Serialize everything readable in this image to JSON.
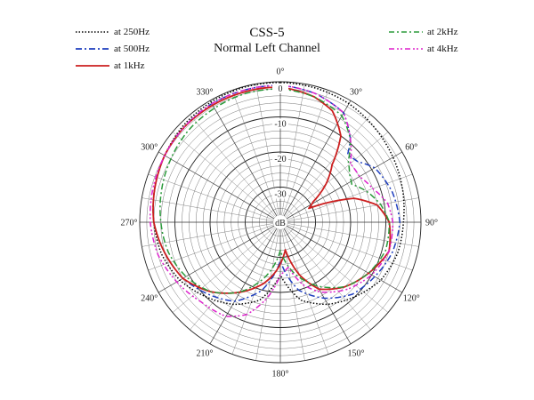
{
  "chart_data": {
    "type": "polar-line",
    "title": "CSS-5",
    "subtitle": "Normal Left Channel",
    "radial_axis": {
      "unit": "dB",
      "min": -40,
      "max": 0,
      "tick_labels": [
        "0",
        "-10",
        "-20",
        "-30"
      ],
      "tick_values": [
        0,
        -10,
        -20,
        -30
      ]
    },
    "angular_axis": {
      "tick_labels": [
        "0°",
        "30°",
        "60°",
        "90°",
        "120°",
        "150°",
        "180°",
        "210°",
        "240°",
        "270°",
        "300°",
        "330°"
      ],
      "tick_values": [
        0,
        30,
        60,
        90,
        120,
        150,
        180,
        210,
        240,
        270,
        300,
        330
      ],
      "direction": "clockwise",
      "zero_at": "top"
    },
    "grid": true,
    "legend": {
      "position": "top-left and top-right"
    },
    "series": [
      {
        "name": "at 250Hz",
        "color": "#000000",
        "style": "dotted",
        "points": [
          [
            0,
            -0.2
          ],
          [
            15,
            -0.5
          ],
          [
            30,
            -1
          ],
          [
            45,
            -2
          ],
          [
            60,
            -3
          ],
          [
            75,
            -4
          ],
          [
            90,
            -5
          ],
          [
            105,
            -5.5
          ],
          [
            120,
            -7
          ],
          [
            135,
            -10
          ],
          [
            150,
            -13
          ],
          [
            165,
            -17
          ],
          [
            180,
            -25
          ],
          [
            195,
            -17
          ],
          [
            210,
            -13
          ],
          [
            225,
            -10
          ],
          [
            240,
            -7
          ],
          [
            255,
            -5
          ],
          [
            270,
            -4
          ],
          [
            285,
            -3
          ],
          [
            300,
            -2
          ],
          [
            315,
            -1
          ],
          [
            330,
            -0.5
          ],
          [
            345,
            -0.2
          ]
        ]
      },
      {
        "name": "at 500Hz",
        "color": "#1f3fbf",
        "style": "dash-dot",
        "points": [
          [
            0,
            -1
          ],
          [
            15,
            -2
          ],
          [
            30,
            -4
          ],
          [
            40,
            -9
          ],
          [
            45,
            -13
          ],
          [
            52,
            -12
          ],
          [
            60,
            -9
          ],
          [
            75,
            -7
          ],
          [
            90,
            -6
          ],
          [
            105,
            -7
          ],
          [
            120,
            -9
          ],
          [
            135,
            -11
          ],
          [
            150,
            -15
          ],
          [
            165,
            -20
          ],
          [
            180,
            -29
          ],
          [
            195,
            -20
          ],
          [
            210,
            -14
          ],
          [
            225,
            -11
          ],
          [
            240,
            -8
          ],
          [
            255,
            -6
          ],
          [
            270,
            -4
          ],
          [
            285,
            -3
          ],
          [
            300,
            -2
          ],
          [
            315,
            -1.5
          ],
          [
            330,
            -1
          ],
          [
            345,
            -1
          ]
        ]
      },
      {
        "name": "at 1kHz",
        "color": "#cc1f1f",
        "style": "solid",
        "points": [
          [
            0,
            -1.5
          ],
          [
            15,
            -3
          ],
          [
            25,
            -5
          ],
          [
            35,
            -10
          ],
          [
            42,
            -18
          ],
          [
            50,
            -23
          ],
          [
            58,
            -29
          ],
          [
            64,
            -31
          ],
          [
            72,
            -18
          ],
          [
            80,
            -12
          ],
          [
            90,
            -9
          ],
          [
            105,
            -8
          ],
          [
            120,
            -11
          ],
          [
            135,
            -14
          ],
          [
            150,
            -18
          ],
          [
            160,
            -24
          ],
          [
            170,
            -32
          ],
          [
            178,
            -29
          ],
          [
            185,
            -26
          ],
          [
            195,
            -22
          ],
          [
            210,
            -17
          ],
          [
            225,
            -12
          ],
          [
            240,
            -8
          ],
          [
            255,
            -6
          ],
          [
            270,
            -4
          ],
          [
            285,
            -3
          ],
          [
            300,
            -2
          ],
          [
            315,
            -1.5
          ],
          [
            330,
            -1.5
          ],
          [
            345,
            -1.5
          ]
        ]
      },
      {
        "name": "at 2kHz",
        "color": "#2a9a3a",
        "style": "dash-dot",
        "points": [
          [
            0,
            -2
          ],
          [
            15,
            -3
          ],
          [
            30,
            -5
          ],
          [
            40,
            -9
          ],
          [
            48,
            -14
          ],
          [
            55,
            -16
          ],
          [
            62,
            -17
          ],
          [
            70,
            -14
          ],
          [
            80,
            -11
          ],
          [
            90,
            -9
          ],
          [
            105,
            -9
          ],
          [
            120,
            -11
          ],
          [
            135,
            -14
          ],
          [
            150,
            -19
          ],
          [
            165,
            -25
          ],
          [
            180,
            -32
          ],
          [
            195,
            -24
          ],
          [
            210,
            -17
          ],
          [
            225,
            -12
          ],
          [
            240,
            -9
          ],
          [
            255,
            -7
          ],
          [
            270,
            -6
          ],
          [
            285,
            -5
          ],
          [
            300,
            -4
          ],
          [
            315,
            -3
          ],
          [
            330,
            -2.5
          ],
          [
            345,
            -2
          ]
        ]
      },
      {
        "name": "at 4kHz",
        "color": "#dd22cc",
        "style": "dash-dot-dot",
        "points": [
          [
            0,
            -1
          ],
          [
            15,
            -2
          ],
          [
            30,
            -4
          ],
          [
            40,
            -9
          ],
          [
            50,
            -14
          ],
          [
            60,
            -14
          ],
          [
            70,
            -12
          ],
          [
            80,
            -9
          ],
          [
            90,
            -8
          ],
          [
            105,
            -8
          ],
          [
            120,
            -10
          ],
          [
            135,
            -13
          ],
          [
            150,
            -17
          ],
          [
            160,
            -21
          ],
          [
            170,
            -27
          ],
          [
            180,
            -25
          ],
          [
            190,
            -18
          ],
          [
            200,
            -12
          ],
          [
            210,
            -9
          ],
          [
            225,
            -8
          ],
          [
            240,
            -6
          ],
          [
            255,
            -4
          ],
          [
            270,
            -3
          ],
          [
            285,
            -2.5
          ],
          [
            300,
            -2
          ],
          [
            315,
            -1.5
          ],
          [
            330,
            -1
          ],
          [
            345,
            -1
          ]
        ]
      }
    ]
  }
}
